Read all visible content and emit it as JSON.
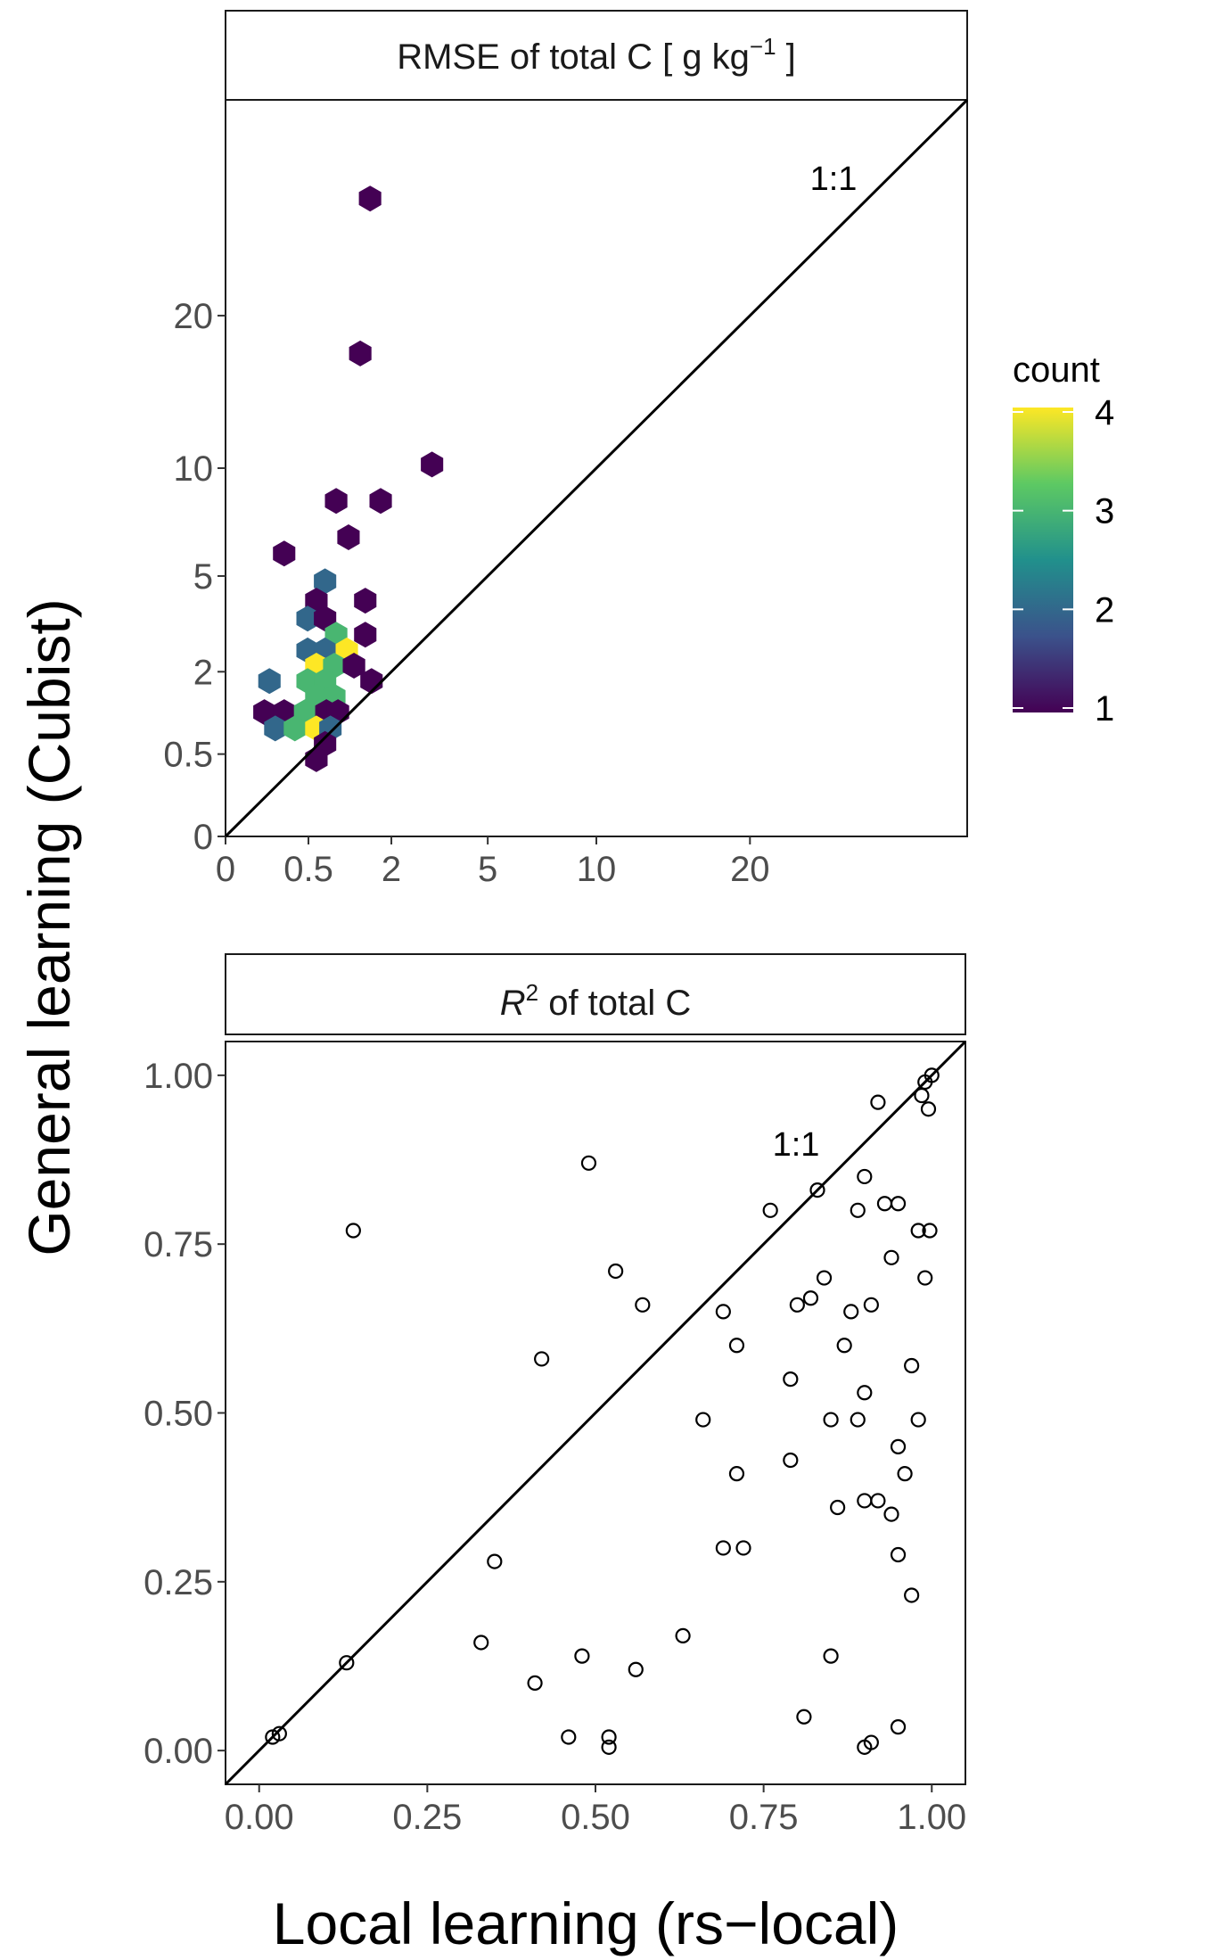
{
  "shared": {
    "ylabel": "General learning (Cubist)",
    "xlabel": "Local learning (rs−local)"
  },
  "chart_data": [
    {
      "type": "hexbin",
      "strip_title": {
        "pre": "RMSE of total C [ g kg",
        "sup": "−1",
        "post": " ]"
      },
      "annotation": "1:1",
      "xlim": [
        0,
        40
      ],
      "ylim": [
        0,
        40
      ],
      "scale": "sqrt",
      "xticks": [
        0,
        0.5,
        2,
        5,
        10,
        20
      ],
      "xtick_labels": [
        "0",
        "0.5",
        "2",
        "5",
        "10",
        "20"
      ],
      "yticks": [
        0,
        0.5,
        2,
        5,
        10,
        20
      ],
      "ytick_labels": [
        "0",
        "0.5",
        "2",
        "5",
        "10",
        "20"
      ],
      "reference_line": "1:1",
      "bins": [
        {
          "x": 1.52,
          "y": 30.0,
          "count": 1
        },
        {
          "x": 1.32,
          "y": 17.2,
          "count": 1
        },
        {
          "x": 3.1,
          "y": 10.2,
          "count": 1
        },
        {
          "x": 0.89,
          "y": 8.3,
          "count": 1
        },
        {
          "x": 1.75,
          "y": 8.3,
          "count": 1
        },
        {
          "x": 1.1,
          "y": 6.6,
          "count": 1
        },
        {
          "x": 0.25,
          "y": 5.9,
          "count": 1
        },
        {
          "x": 0.72,
          "y": 4.8,
          "count": 2
        },
        {
          "x": 0.6,
          "y": 4.1,
          "count": 1
        },
        {
          "x": 1.42,
          "y": 4.1,
          "count": 1
        },
        {
          "x": 0.49,
          "y": 3.5,
          "count": 2
        },
        {
          "x": 0.72,
          "y": 3.5,
          "count": 1
        },
        {
          "x": 0.89,
          "y": 3.0,
          "count": 3
        },
        {
          "x": 1.42,
          "y": 3.0,
          "count": 1
        },
        {
          "x": 0.49,
          "y": 2.55,
          "count": 2
        },
        {
          "x": 0.72,
          "y": 2.55,
          "count": 2
        },
        {
          "x": 1.07,
          "y": 2.55,
          "count": 4
        },
        {
          "x": 0.6,
          "y": 2.15,
          "count": 4
        },
        {
          "x": 0.86,
          "y": 2.15,
          "count": 3
        },
        {
          "x": 1.2,
          "y": 2.15,
          "count": 1
        },
        {
          "x": 0.14,
          "y": 1.78,
          "count": 2
        },
        {
          "x": 0.49,
          "y": 1.78,
          "count": 3
        },
        {
          "x": 0.72,
          "y": 1.78,
          "count": 3
        },
        {
          "x": 1.55,
          "y": 1.78,
          "count": 1
        },
        {
          "x": 0.6,
          "y": 1.44,
          "count": 3
        },
        {
          "x": 0.86,
          "y": 1.44,
          "count": 3
        },
        {
          "x": 0.11,
          "y": 1.14,
          "count": 1
        },
        {
          "x": 0.25,
          "y": 1.14,
          "count": 1
        },
        {
          "x": 0.46,
          "y": 1.14,
          "count": 3
        },
        {
          "x": 0.74,
          "y": 1.14,
          "count": 1
        },
        {
          "x": 0.92,
          "y": 1.14,
          "count": 1
        },
        {
          "x": 0.18,
          "y": 0.86,
          "count": 2
        },
        {
          "x": 0.35,
          "y": 0.86,
          "count": 3
        },
        {
          "x": 0.6,
          "y": 0.86,
          "count": 4
        },
        {
          "x": 0.8,
          "y": 0.86,
          "count": 2
        },
        {
          "x": 0.72,
          "y": 0.63,
          "count": 1
        },
        {
          "x": 0.6,
          "y": 0.44,
          "count": 1
        }
      ],
      "legend": {
        "title": "count",
        "min": 1,
        "max": 4,
        "ticks": [
          1,
          2,
          3,
          4
        ],
        "tick_labels": [
          "1",
          "2",
          "3",
          "4"
        ],
        "position": "right"
      },
      "colors": [
        "#440154",
        "#3b528b",
        "#21908c",
        "#5dc963",
        "#fde725"
      ]
    },
    {
      "type": "scatter",
      "strip_title": {
        "pre": "R",
        "sup": "2",
        "post": " of total C"
      },
      "annotation": "1:1",
      "xlim": [
        -0.05,
        1.05
      ],
      "ylim": [
        -0.05,
        1.05
      ],
      "xticks": [
        0,
        0.25,
        0.5,
        0.75,
        1.0
      ],
      "xtick_labels": [
        "0.00",
        "0.25",
        "0.50",
        "0.75",
        "1.00"
      ],
      "yticks": [
        0,
        0.25,
        0.5,
        0.75,
        1.0
      ],
      "ytick_labels": [
        "0.00",
        "0.25",
        "0.50",
        "0.75",
        "1.00"
      ],
      "reference_line": "1:1",
      "points": [
        {
          "x": 0.02,
          "y": 0.02
        },
        {
          "x": 0.03,
          "y": 0.025
        },
        {
          "x": 0.13,
          "y": 0.13
        },
        {
          "x": 0.14,
          "y": 0.77
        },
        {
          "x": 0.33,
          "y": 0.16
        },
        {
          "x": 0.35,
          "y": 0.28
        },
        {
          "x": 0.41,
          "y": 0.1
        },
        {
          "x": 0.42,
          "y": 0.58
        },
        {
          "x": 0.46,
          "y": 0.02
        },
        {
          "x": 0.48,
          "y": 0.14
        },
        {
          "x": 0.49,
          "y": 0.87
        },
        {
          "x": 0.52,
          "y": 0.005
        },
        {
          "x": 0.52,
          "y": 0.02
        },
        {
          "x": 0.53,
          "y": 0.71
        },
        {
          "x": 0.56,
          "y": 0.12
        },
        {
          "x": 0.57,
          "y": 0.66
        },
        {
          "x": 0.63,
          "y": 0.17
        },
        {
          "x": 0.66,
          "y": 0.49
        },
        {
          "x": 0.69,
          "y": 0.65
        },
        {
          "x": 0.69,
          "y": 0.3
        },
        {
          "x": 0.71,
          "y": 0.6
        },
        {
          "x": 0.71,
          "y": 0.41
        },
        {
          "x": 0.72,
          "y": 0.3
        },
        {
          "x": 0.76,
          "y": 0.8
        },
        {
          "x": 0.79,
          "y": 0.55
        },
        {
          "x": 0.79,
          "y": 0.43
        },
        {
          "x": 0.8,
          "y": 0.66
        },
        {
          "x": 0.81,
          "y": 0.05
        },
        {
          "x": 0.82,
          "y": 0.67
        },
        {
          "x": 0.83,
          "y": 0.83
        },
        {
          "x": 0.84,
          "y": 0.7
        },
        {
          "x": 0.85,
          "y": 0.49
        },
        {
          "x": 0.85,
          "y": 0.14
        },
        {
          "x": 0.86,
          "y": 0.36
        },
        {
          "x": 0.87,
          "y": 0.6
        },
        {
          "x": 0.88,
          "y": 0.65
        },
        {
          "x": 0.89,
          "y": 0.8
        },
        {
          "x": 0.89,
          "y": 0.49
        },
        {
          "x": 0.9,
          "y": 0.85
        },
        {
          "x": 0.9,
          "y": 0.53
        },
        {
          "x": 0.9,
          "y": 0.37
        },
        {
          "x": 0.9,
          "y": 0.005
        },
        {
          "x": 0.91,
          "y": 0.012
        },
        {
          "x": 0.91,
          "y": 0.66
        },
        {
          "x": 0.92,
          "y": 0.96
        },
        {
          "x": 0.92,
          "y": 0.37
        },
        {
          "x": 0.93,
          "y": 0.81
        },
        {
          "x": 0.94,
          "y": 0.35
        },
        {
          "x": 0.94,
          "y": 0.73
        },
        {
          "x": 0.95,
          "y": 0.45
        },
        {
          "x": 0.95,
          "y": 0.29
        },
        {
          "x": 0.95,
          "y": 0.81
        },
        {
          "x": 0.95,
          "y": 0.035
        },
        {
          "x": 0.96,
          "y": 0.41
        },
        {
          "x": 0.97,
          "y": 0.23
        },
        {
          "x": 0.97,
          "y": 0.57
        },
        {
          "x": 0.98,
          "y": 0.77
        },
        {
          "x": 0.98,
          "y": 0.49
        },
        {
          "x": 0.985,
          "y": 0.97
        },
        {
          "x": 0.99,
          "y": 0.7
        },
        {
          "x": 0.99,
          "y": 0.99
        },
        {
          "x": 0.995,
          "y": 0.95
        },
        {
          "x": 0.997,
          "y": 0.77
        },
        {
          "x": 1.0,
          "y": 1.0
        }
      ]
    }
  ]
}
